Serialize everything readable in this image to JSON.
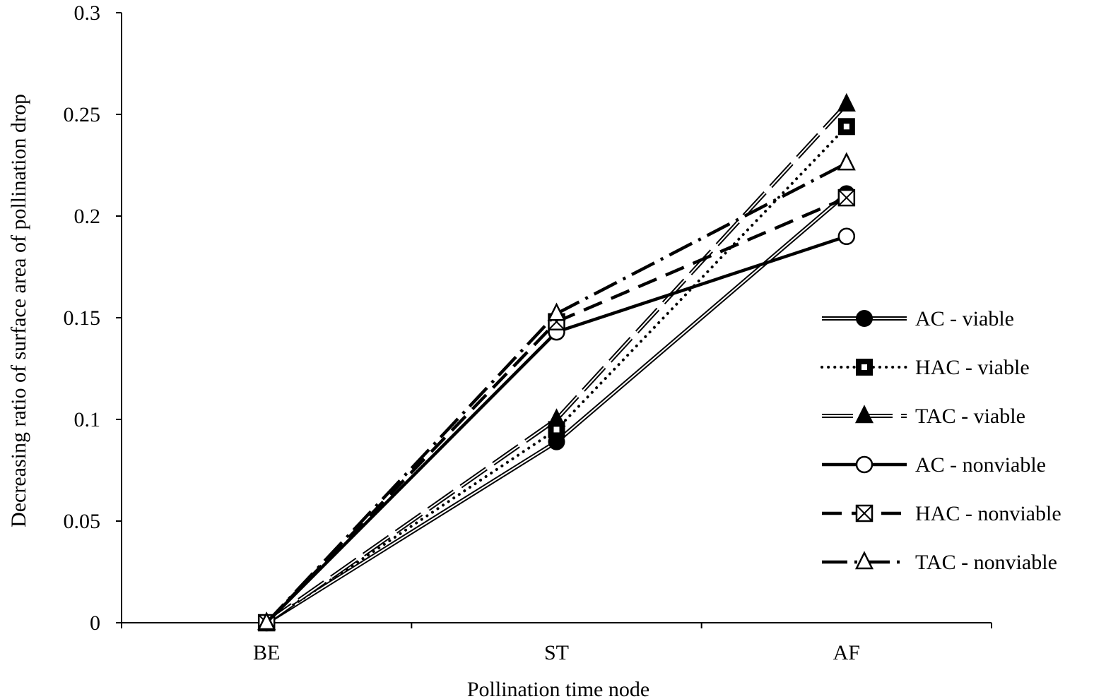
{
  "chart_data": {
    "type": "line",
    "xlabel": "Pollination time node",
    "ylabel": "Decreasing ratio of surface area of pollination drop",
    "categories": [
      "BE",
      "ST",
      "AF"
    ],
    "ylim": [
      0,
      0.3
    ],
    "yticks": [
      0,
      0.05,
      0.1,
      0.15,
      0.2,
      0.25,
      0.3
    ],
    "ytick_labels": [
      "0",
      "0.05",
      "0.1",
      "0.15",
      "0.2",
      "0.25",
      "0.3"
    ],
    "grid": false,
    "legend_position": "right",
    "series": [
      {
        "name": "AC - viable",
        "values": [
          0,
          0.089,
          0.211
        ],
        "line": "double",
        "marker": "circle-filled"
      },
      {
        "name": "HAC - viable",
        "values": [
          0,
          0.095,
          0.244
        ],
        "line": "dotted",
        "marker": "square-filled"
      },
      {
        "name": "TAC - viable",
        "values": [
          0,
          0.1,
          0.255
        ],
        "line": "double-dashed",
        "marker": "triangle-filled"
      },
      {
        "name": "AC - nonviable",
        "values": [
          0,
          0.143,
          0.19
        ],
        "line": "solid-thick",
        "marker": "circle-open"
      },
      {
        "name": "HAC - nonviable",
        "values": [
          0,
          0.148,
          0.209
        ],
        "line": "dashed",
        "marker": "square-x"
      },
      {
        "name": "TAC - nonviable",
        "values": [
          0,
          0.152,
          0.226
        ],
        "line": "dash-dot",
        "marker": "triangle-open"
      }
    ]
  }
}
